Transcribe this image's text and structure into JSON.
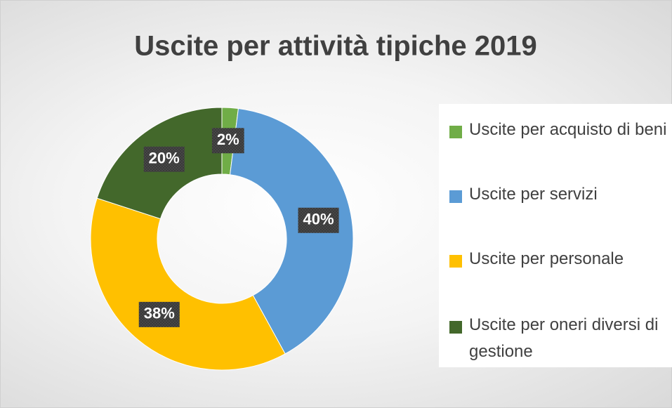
{
  "chart_data": {
    "type": "donut",
    "title": "Uscite per attività tipiche 2019",
    "categories": [
      "Uscite per acquisto di beni",
      "Uscite per servizi",
      "Uscite per personale",
      "Uscite per oneri diversi di gestione"
    ],
    "values": [
      2,
      40,
      38,
      20
    ],
    "value_labels": [
      "2%",
      "40%",
      "38%",
      "20%"
    ],
    "colors": [
      "#70ad47",
      "#5b9bd5",
      "#ffc000",
      "#43682b"
    ],
    "legend": "right"
  }
}
